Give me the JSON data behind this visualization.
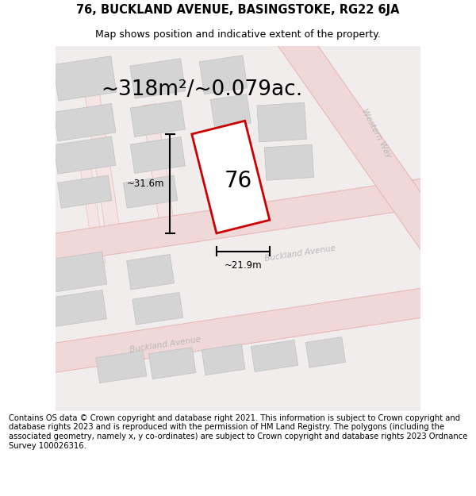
{
  "title": "76, BUCKLAND AVENUE, BASINGSTOKE, RG22 6JA",
  "subtitle": "Map shows position and indicative extent of the property.",
  "area_text": "~318m²/~0.079ac.",
  "label_76": "76",
  "dim_width": "~21.9m",
  "dim_height": "~31.6m",
  "footer": "Contains OS data © Crown copyright and database right 2021. This information is subject to Crown copyright and database rights 2023 and is reproduced with the permission of HM Land Registry. The polygons (including the associated geometry, namely x, y co-ordinates) are subject to Crown copyright and database rights 2023 Ordnance Survey 100026316.",
  "bg_color": "#ffffff",
  "map_bg": "#f2eded",
  "road_fill": "#f0d8d8",
  "road_edge": "#e8b8b8",
  "building_fill": "#d4d4d4",
  "building_edge": "#c0c0c0",
  "plot_color": "#cc0000",
  "plot_fill": "#ffffff",
  "street_label_color": "#b8b8b8",
  "title_fontsize": 10.5,
  "subtitle_fontsize": 9,
  "area_fontsize": 19,
  "label_fontsize": 20,
  "dim_fontsize": 8.5,
  "footer_fontsize": 7.2,
  "road_lw": 0.8,
  "plot_lw": 2.0,
  "road_rotation": 8.5,
  "western_way_rotation": -62
}
